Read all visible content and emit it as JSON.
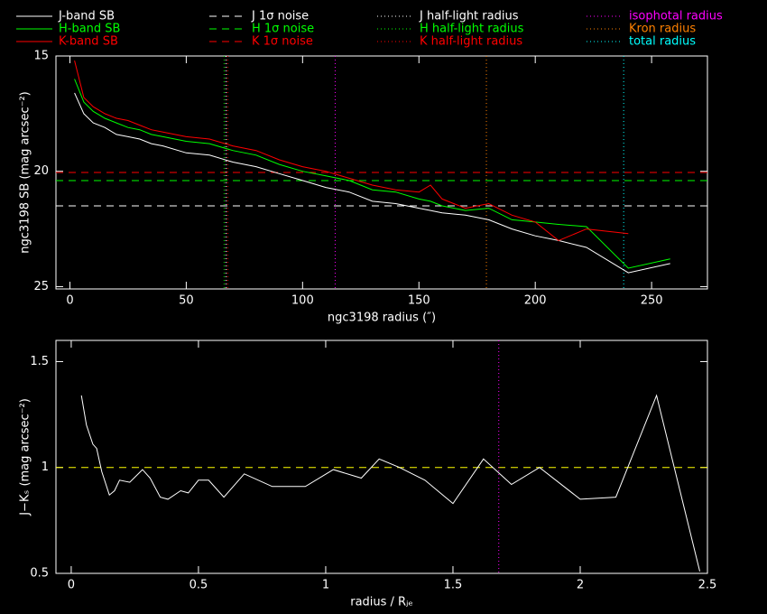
{
  "chart_data": [
    {
      "type": "line",
      "x_label": "ngc3198 radius (″)",
      "y_label": "ngc3198 SB (mag arcsec⁻²)",
      "x": [
        2,
        6,
        10,
        15,
        20,
        25,
        30,
        35,
        40,
        50,
        60,
        70,
        80,
        90,
        100,
        110,
        120,
        130,
        140,
        150,
        155,
        160,
        170,
        180,
        190,
        200,
        210,
        222,
        240,
        258
      ],
      "series": [
        {
          "name": "J-band SB",
          "color": "#ffffff",
          "values": [
            16.6,
            17.5,
            17.9,
            18.1,
            18.4,
            18.5,
            18.6,
            18.8,
            18.9,
            19.2,
            19.3,
            19.6,
            19.8,
            20.1,
            20.4,
            20.7,
            20.9,
            21.3,
            21.4,
            21.6,
            21.7,
            21.8,
            21.9,
            22.1,
            22.5,
            22.8,
            23.0,
            23.3,
            24.4,
            24.0
          ]
        },
        {
          "name": "H-band SB",
          "color": "#00ff00",
          "values": [
            16.0,
            17.0,
            17.4,
            17.7,
            17.9,
            18.1,
            18.2,
            18.4,
            18.5,
            18.7,
            18.8,
            19.1,
            19.3,
            19.7,
            20.0,
            20.2,
            20.4,
            20.8,
            20.9,
            21.2,
            21.3,
            21.5,
            21.7,
            21.6,
            22.1,
            22.2,
            22.3,
            22.4,
            24.2,
            23.8
          ]
        },
        {
          "name": "K-band SB",
          "color": "#ff0000",
          "values": [
            15.2,
            16.8,
            17.2,
            17.5,
            17.7,
            17.8,
            18.0,
            18.2,
            18.3,
            18.5,
            18.6,
            18.9,
            19.1,
            19.5,
            19.8,
            20.0,
            20.3,
            20.6,
            20.8,
            20.9,
            20.6,
            21.2,
            21.6,
            21.4,
            21.9,
            22.2,
            23.0,
            22.5,
            22.7,
            null
          ]
        }
      ],
      "hlines": [
        {
          "name": "J 1σ noise",
          "color": "#ffffff",
          "value": 21.5
        },
        {
          "name": "H 1σ noise",
          "color": "#00ff00",
          "value": 20.4
        },
        {
          "name": "K 1σ noise",
          "color": "#ff0000",
          "value": 20.05
        }
      ],
      "vlines": [
        {
          "name": "J half-light radius",
          "color": "#ffffff",
          "value": 67.1
        },
        {
          "name": "H half-light radius",
          "color": "#00ff00",
          "value": 66.3
        },
        {
          "name": "K half-light radius",
          "color": "#ff0000",
          "value": 67.8
        },
        {
          "name": "isophotal radius",
          "color": "#ff00ff",
          "value": 114
        },
        {
          "name": "Kron radius",
          "color": "#ff8000",
          "value": 179
        },
        {
          "name": "total radius",
          "color": "#00ffff",
          "value": 238
        }
      ],
      "xlim": [
        -6,
        274
      ],
      "xticks": [
        0,
        50,
        100,
        150,
        200,
        250
      ],
      "ylim": [
        15,
        25.1
      ],
      "yticks": [
        15,
        20,
        25
      ],
      "invert_y": true
    },
    {
      "type": "line",
      "x_label": "radius / Rⱼₑ",
      "y_label": "J−Kₛ (mag arcsec⁻²)",
      "x": [
        0.04,
        0.06,
        0.085,
        0.1,
        0.12,
        0.15,
        0.17,
        0.19,
        0.23,
        0.28,
        0.31,
        0.35,
        0.38,
        0.43,
        0.46,
        0.5,
        0.54,
        0.6,
        0.68,
        0.79,
        0.92,
        1.03,
        1.14,
        1.21,
        1.29,
        1.39,
        1.5,
        1.62,
        1.73,
        1.84,
        2.0,
        2.14,
        2.3,
        2.47
      ],
      "series": [
        {
          "color": "#ffffff",
          "values": [
            1.34,
            1.2,
            1.11,
            1.09,
            0.98,
            0.87,
            0.89,
            0.94,
            0.93,
            0.99,
            0.95,
            0.86,
            0.85,
            0.89,
            0.88,
            0.94,
            0.94,
            0.86,
            0.97,
            0.91,
            0.91,
            0.99,
            0.95,
            1.04,
            1.0,
            0.94,
            0.83,
            1.04,
            0.92,
            1.0,
            0.85,
            0.86,
            1.34,
            0.51
          ]
        }
      ],
      "hlines": [
        {
          "color": "#ffff00",
          "value": 1
        }
      ],
      "vlines": [
        {
          "color": "#ff00ff",
          "value": 1.68
        }
      ],
      "xlim": [
        -0.06,
        2.5
      ],
      "xticks": [
        0,
        0.5,
        1,
        1.5,
        2,
        2.5
      ],
      "ylim": [
        0.5,
        1.6
      ],
      "yticks": [
        0.5,
        1,
        1.5
      ]
    }
  ]
}
